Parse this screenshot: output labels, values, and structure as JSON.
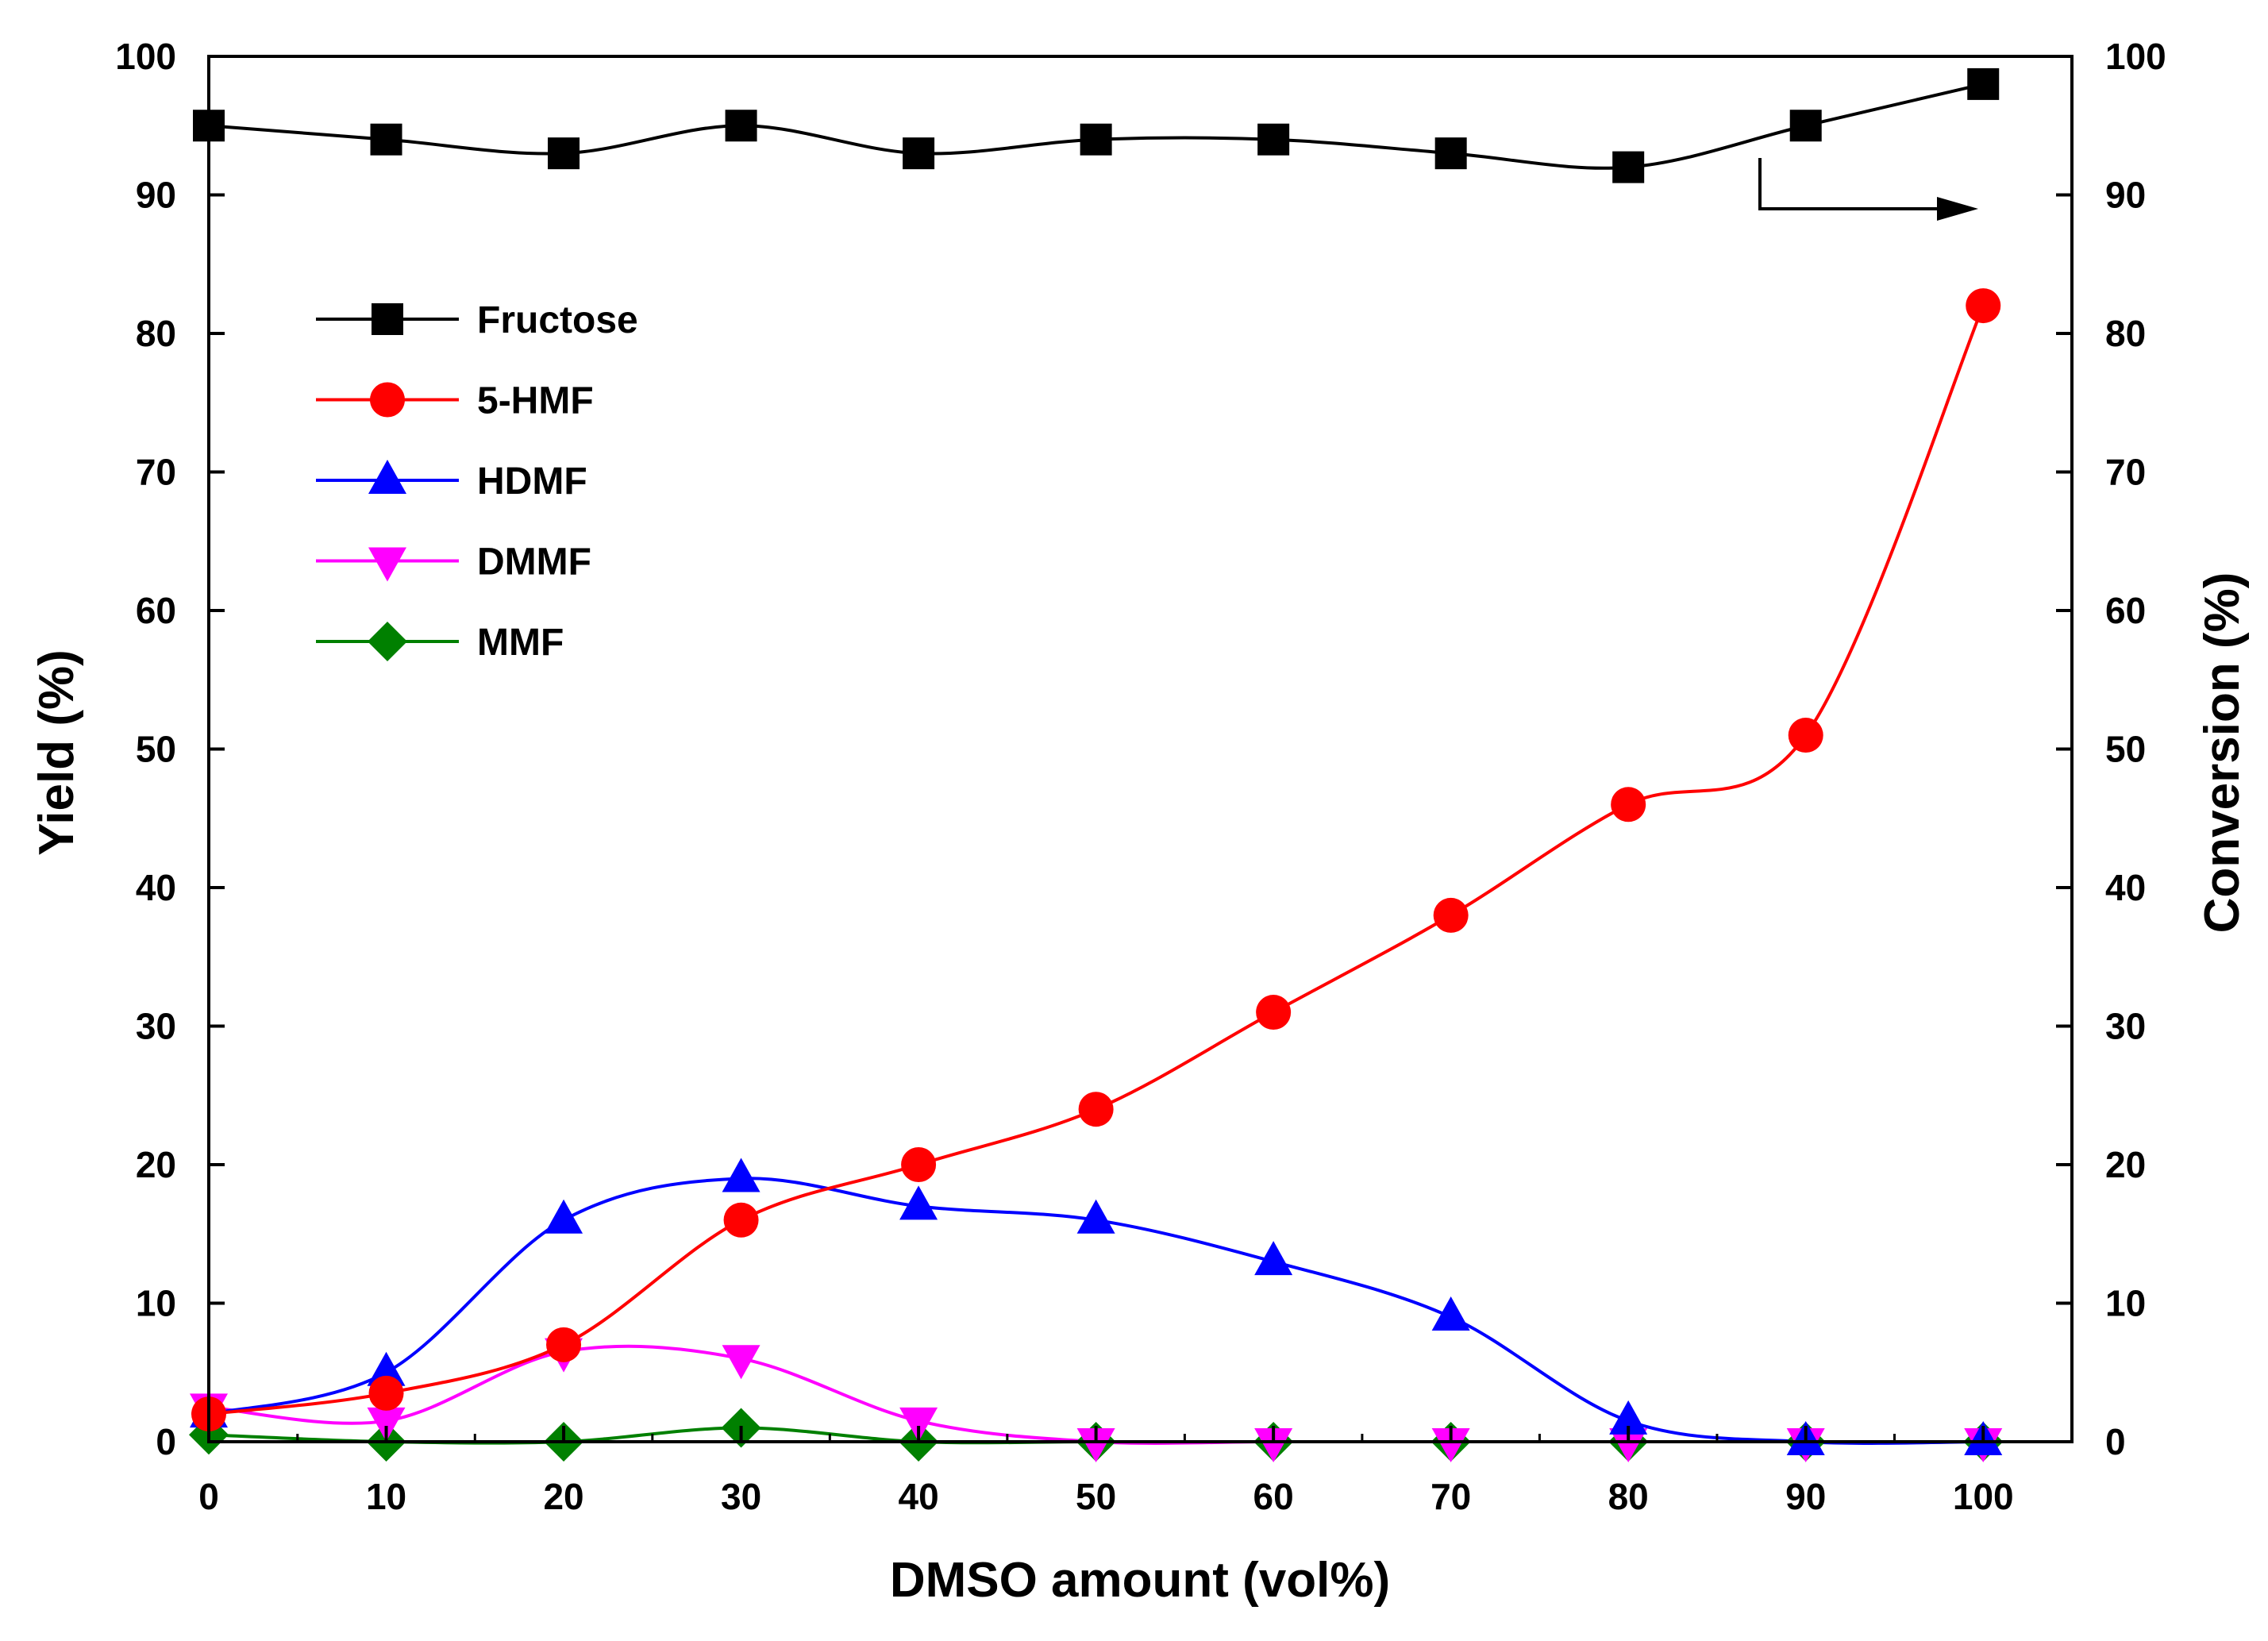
{
  "chart_data": {
    "type": "line",
    "title": "",
    "xlabel": "DMSO amount (vol%)",
    "ylabel": "Yield (%)",
    "y2label": "Conversion (%)",
    "xlim": [
      0,
      105
    ],
    "ylim": [
      0,
      100
    ],
    "y2lim": [
      0,
      100
    ],
    "grid": false,
    "legend_position": "upper-left",
    "x": [
      0,
      10,
      20,
      30,
      40,
      50,
      60,
      70,
      80,
      90,
      100
    ],
    "x_ticks": [
      0,
      10,
      20,
      30,
      40,
      50,
      60,
      70,
      80,
      90,
      100
    ],
    "y_ticks": [
      0,
      10,
      20,
      30,
      40,
      50,
      60,
      70,
      80,
      90,
      100
    ],
    "series": [
      {
        "name": "Fructose",
        "axis": "right",
        "marker": "square",
        "color": "#000000",
        "values": [
          95,
          94,
          93,
          95,
          93,
          94,
          94,
          93,
          92,
          95,
          98
        ]
      },
      {
        "name": "5-HMF",
        "axis": "left",
        "marker": "circle",
        "color": "#ff0000",
        "values": [
          2,
          3.5,
          7,
          16,
          20,
          24,
          31,
          38,
          46,
          51,
          82
        ]
      },
      {
        "name": "HDMF",
        "axis": "left",
        "marker": "triangle-up",
        "color": "#0000ff",
        "values": [
          2,
          5,
          16,
          19,
          17,
          16,
          13,
          9,
          1.5,
          0,
          0
        ]
      },
      {
        "name": "DMMF",
        "axis": "left",
        "marker": "triangle-down",
        "color": "#ff00ff",
        "values": [
          2.5,
          1.5,
          6.5,
          6,
          1.5,
          0,
          0,
          0,
          0,
          0,
          0
        ]
      },
      {
        "name": "MMF",
        "axis": "left",
        "marker": "diamond",
        "color": "#008000",
        "values": [
          0.5,
          0,
          0,
          1,
          0,
          0,
          0,
          0,
          0,
          0,
          0
        ]
      }
    ],
    "annotations": [
      {
        "type": "arrow",
        "direction": "right",
        "meaning": "Fructose curve refers to right axis (Conversion)"
      }
    ]
  }
}
